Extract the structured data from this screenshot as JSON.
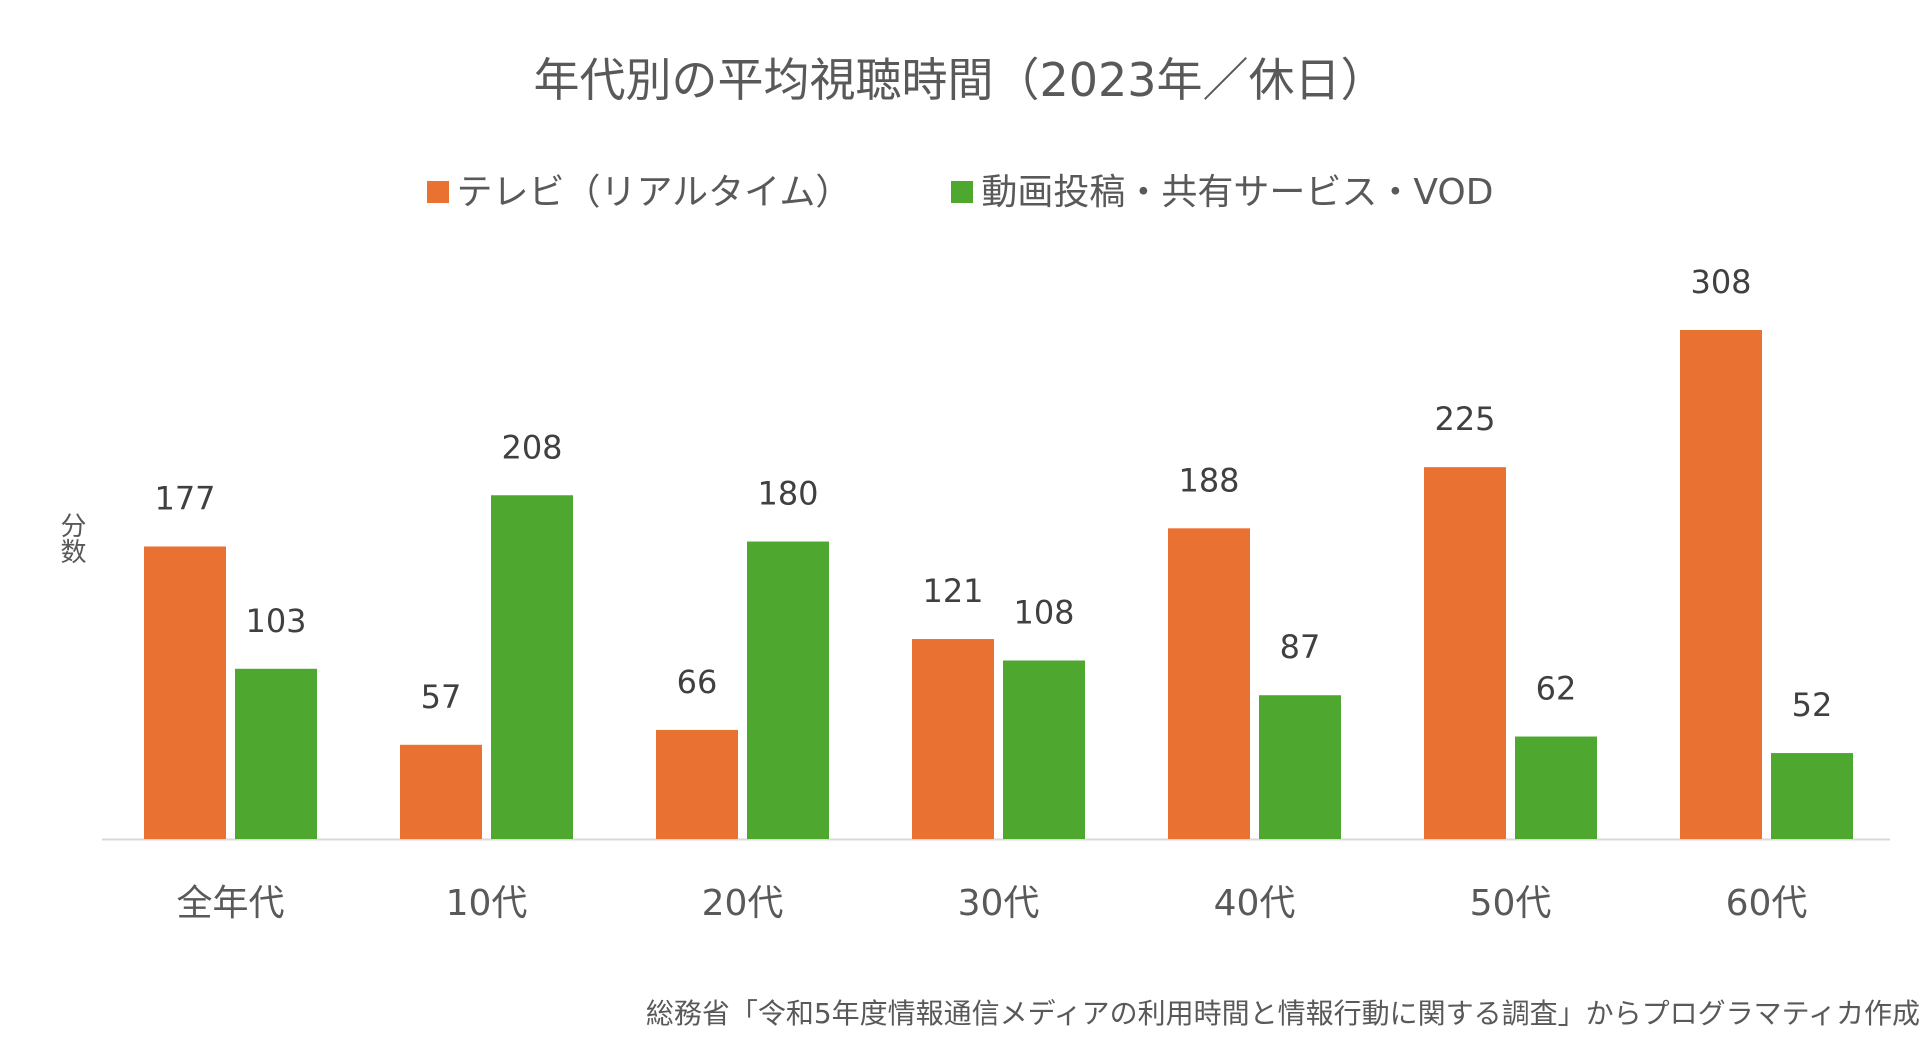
{
  "chart_data": {
    "type": "bar",
    "title": "年代別の平均視聴時間（2023年／休日）",
    "xlabel": "",
    "ylabel": "分数",
    "ylim": [
      0,
      308
    ],
    "grid": false,
    "legend_position": "top",
    "categories": [
      "全年代",
      "10代",
      "20代",
      "30代",
      "40代",
      "50代",
      "60代"
    ],
    "series": [
      {
        "name": "テレビ（リアルタイム）",
        "color": "#E97132",
        "values": [
          177,
          57,
          66,
          121,
          188,
          225,
          308
        ]
      },
      {
        "name": "動画投稿・共有サービス・VOD",
        "color": "#4EA72E",
        "values": [
          103,
          208,
          180,
          108,
          87,
          62,
          52
        ]
      }
    ],
    "source_note": "総務省「令和5年度情報通信メディアの利用時間と情報行動に関する調査」からプログラマティカ作成"
  },
  "colors": {
    "text": "#595959",
    "axis": "#D9D9D9",
    "label": "#404040"
  }
}
